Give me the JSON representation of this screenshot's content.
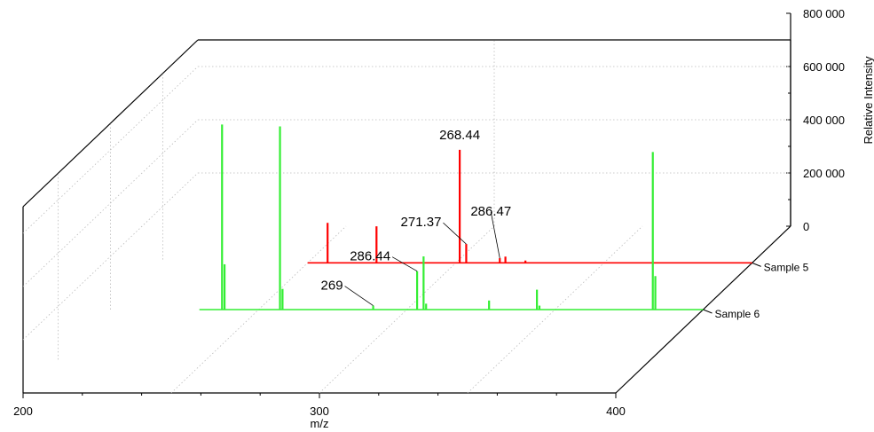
{
  "chart_data": {
    "type": "line",
    "title": "",
    "xlabel": "m/z",
    "ylabel": "Relative Intensity",
    "x_ticks": [
      "200",
      "300",
      "400"
    ],
    "xlim": [
      200,
      400
    ],
    "y_ticks": [
      "0",
      "200 000",
      "400 000",
      "600 000",
      "800 000"
    ],
    "ylim": [
      0,
      800000
    ],
    "grid": true,
    "series": [
      {
        "name": "Sample 5",
        "color": "#ff0000",
        "peaks": [
          {
            "mz": 209,
            "intensity": 255000
          },
          {
            "mz": 231,
            "intensity": 233000
          },
          {
            "mz": 268.44,
            "intensity": 720000
          },
          {
            "mz": 271.37,
            "intensity": 120000
          },
          {
            "mz": 286.47,
            "intensity": 30000
          },
          {
            "mz": 289,
            "intensity": 40000
          },
          {
            "mz": 298,
            "intensity": 15000
          }
        ]
      },
      {
        "name": "Sample 6",
        "color": "#33ee33",
        "peaks": [
          {
            "mz": 209,
            "intensity": 940000
          },
          {
            "mz": 210,
            "intensity": 230000
          },
          {
            "mz": 232,
            "intensity": 930000
          },
          {
            "mz": 233,
            "intensity": 105000
          },
          {
            "mz": 269,
            "intensity": 20000
          },
          {
            "mz": 286.44,
            "intensity": 195000
          },
          {
            "mz": 289,
            "intensity": 270000
          },
          {
            "mz": 290,
            "intensity": 30000
          },
          {
            "mz": 315,
            "intensity": 46000
          },
          {
            "mz": 334,
            "intensity": 101000
          },
          {
            "mz": 335,
            "intensity": 20000
          },
          {
            "mz": 380,
            "intensity": 800000
          },
          {
            "mz": 381,
            "intensity": 170000
          }
        ]
      }
    ],
    "annotations": [
      {
        "text": "268.44",
        "series": "Sample 5"
      },
      {
        "text": "271.37",
        "series": "Sample 5"
      },
      {
        "text": "286.47",
        "series": "Sample 5"
      },
      {
        "text": "286.44",
        "series": "Sample 6"
      },
      {
        "text": "269",
        "series": "Sample 6"
      }
    ]
  }
}
